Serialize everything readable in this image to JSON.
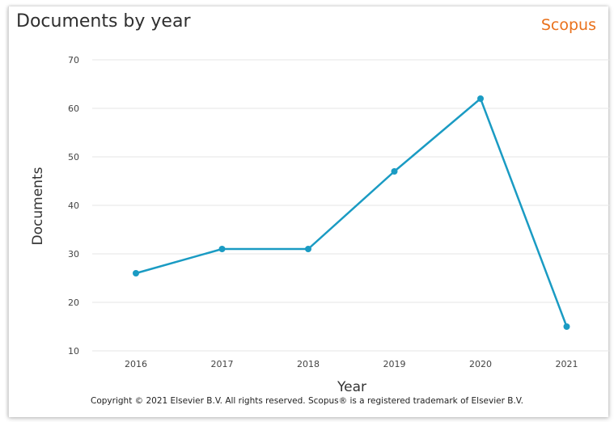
{
  "header": {
    "title": "Documents by year",
    "brand": "Scopus"
  },
  "footer": {
    "copyright": "Copyright © 2021 Elsevier B.V. All rights reserved. Scopus® is a registered trademark of Elsevier B.V."
  },
  "colors": {
    "series": "#1a9bc3",
    "brand": "#e9711c",
    "grid": "#e6e6e6"
  },
  "chart_data": {
    "type": "line",
    "x": [
      2016,
      2017,
      2018,
      2019,
      2020,
      2021
    ],
    "series": [
      {
        "values": [
          26,
          31,
          31,
          47,
          62,
          15
        ]
      }
    ],
    "xlabel": "Year",
    "ylabel": "Documents",
    "ylim": [
      10,
      70
    ],
    "yticks": [
      10,
      20,
      30,
      40,
      50,
      60,
      70
    ],
    "grid": true,
    "legend": "none"
  }
}
